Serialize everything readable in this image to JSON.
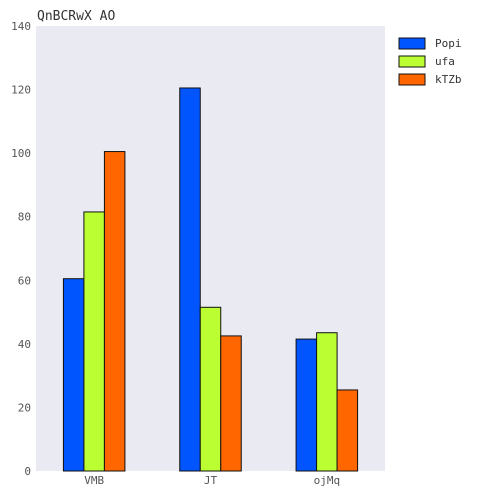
{
  "chart_data": {
    "type": "bar",
    "title": "QnBCRwX AO",
    "xlabel": "",
    "ylabel": "",
    "categories": [
      "VMB",
      "JT",
      "ojMq"
    ],
    "series": [
      {
        "name": "Popi",
        "color": "#0055ff",
        "values": [
          60.5,
          120.5,
          41.5
        ]
      },
      {
        "name": "ufa",
        "color": "#bbff33",
        "values": [
          81.5,
          51.5,
          43.5
        ]
      },
      {
        "name": "kTZb",
        "color": "#ff6600",
        "values": [
          100.5,
          42.5,
          25.5
        ]
      }
    ],
    "ylim": [
      0,
      140
    ],
    "yticks": [
      0,
      20,
      40,
      60,
      80,
      100,
      120,
      140
    ],
    "grid": false,
    "legend_position": "top-right",
    "plot_background": "#eaeaf2"
  }
}
